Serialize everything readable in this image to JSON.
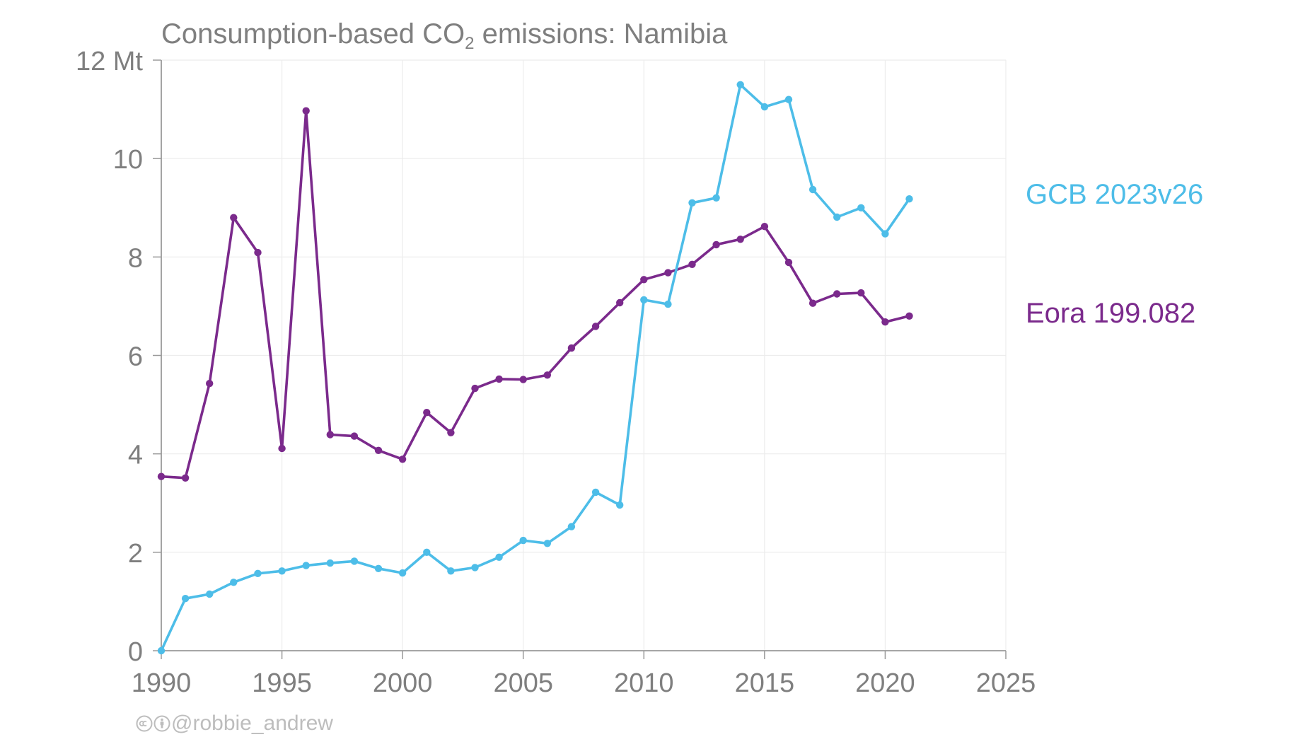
{
  "title": {
    "prefix": "Consumption-based CO",
    "subscript": "2",
    "suffix": " emissions: Namibia"
  },
  "credit": {
    "icons": [
      "creative-commons-icon",
      "attribution-icon"
    ],
    "text": "@robbie_andrew"
  },
  "colors": {
    "gcb": "#4dbde8",
    "eora": "#7b2a8c",
    "axis_text": "#7f7f7f",
    "grid": "#ececec",
    "axis": "#9a9a9a"
  },
  "chart_data": {
    "type": "line",
    "title": "Consumption-based CO2 emissions: Namibia",
    "xlabel": "",
    "ylabel": "",
    "xlim": [
      1990,
      2025
    ],
    "ylim": [
      0,
      12
    ],
    "x_ticks": [
      1990,
      1995,
      2000,
      2005,
      2010,
      2015,
      2020,
      2025
    ],
    "y_ticks": [
      0,
      2,
      4,
      6,
      8,
      10,
      12
    ],
    "y_tick_labels": [
      "0",
      "2",
      "4",
      "6",
      "8",
      "10",
      "12 Mt"
    ],
    "grid": true,
    "legend": "direct labels at right end of series",
    "series": [
      {
        "name": "GCB 2023v26",
        "color": "#4dbde8",
        "x": [
          1990,
          1991,
          1992,
          1993,
          1994,
          1995,
          1996,
          1997,
          1998,
          1999,
          2000,
          2001,
          2002,
          2003,
          2004,
          2005,
          2006,
          2007,
          2008,
          2009,
          2010,
          2011,
          2012,
          2013,
          2014,
          2015,
          2016,
          2017,
          2018,
          2019,
          2020,
          2021
        ],
        "values": [
          0.0,
          1.06,
          1.15,
          1.39,
          1.57,
          1.62,
          1.73,
          1.78,
          1.82,
          1.67,
          1.58,
          2.0,
          1.62,
          1.69,
          1.9,
          2.24,
          2.18,
          2.52,
          3.22,
          2.96,
          7.13,
          7.04,
          9.1,
          9.2,
          11.5,
          11.05,
          11.2,
          9.37,
          8.81,
          9.0,
          8.47,
          9.18
        ]
      },
      {
        "name": "Eora 199.082",
        "color": "#7b2a8c",
        "x": [
          1990,
          1991,
          1992,
          1993,
          1994,
          1995,
          1996,
          1997,
          1998,
          1999,
          2000,
          2001,
          2002,
          2003,
          2004,
          2005,
          2006,
          2007,
          2008,
          2009,
          2010,
          2011,
          2012,
          2013,
          2014,
          2015,
          2016,
          2017,
          2018,
          2019,
          2020,
          2021
        ],
        "values": [
          3.54,
          3.51,
          5.43,
          8.8,
          8.09,
          4.11,
          10.97,
          4.39,
          4.36,
          4.07,
          3.89,
          4.84,
          4.43,
          5.33,
          5.52,
          5.51,
          5.6,
          6.15,
          6.59,
          7.07,
          7.54,
          7.68,
          7.85,
          8.25,
          8.36,
          8.62,
          7.89,
          7.06,
          7.25,
          7.27,
          6.68,
          6.8
        ]
      }
    ]
  }
}
